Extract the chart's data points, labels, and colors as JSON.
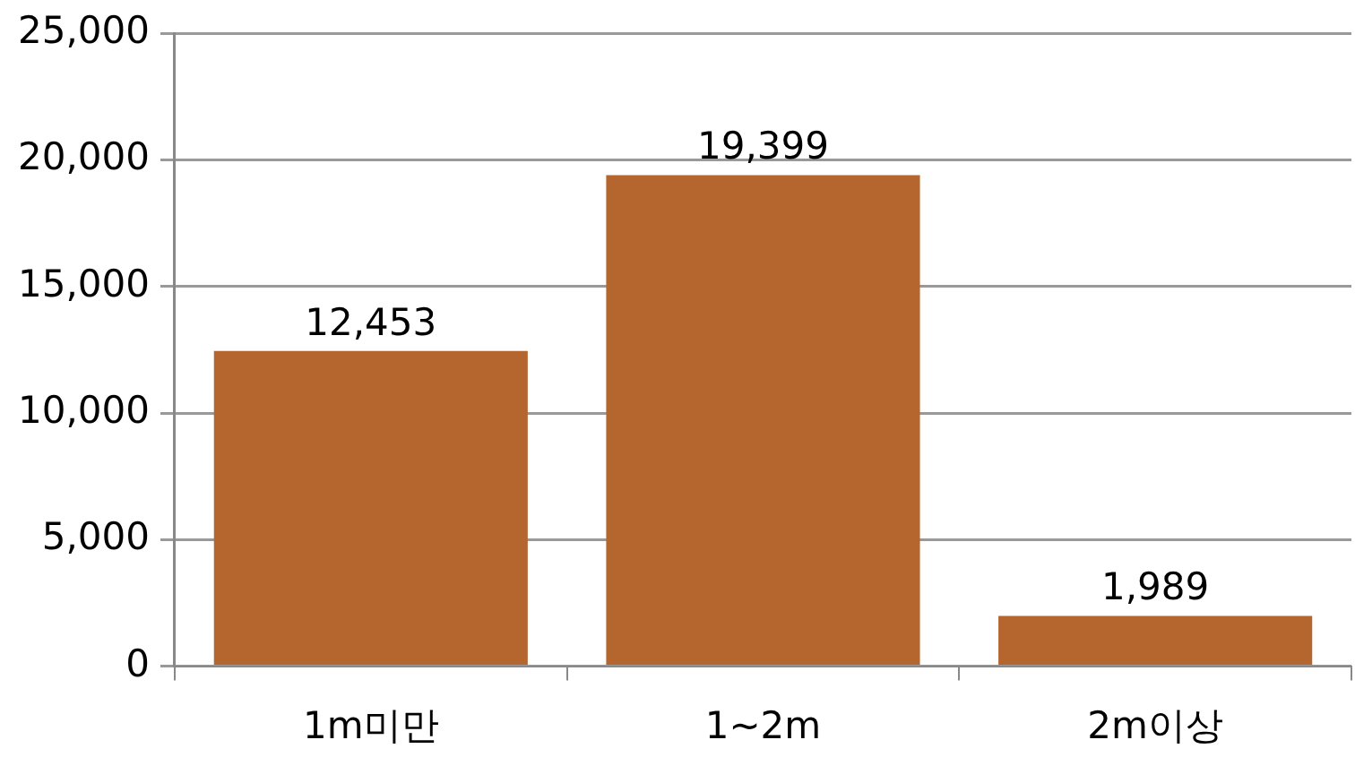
{
  "chart_data": {
    "type": "bar",
    "categories": [
      "1m미만",
      "1~2m",
      "2m이상"
    ],
    "values": [
      12453,
      19399,
      1989
    ],
    "value_labels": [
      "12,453",
      "19,399",
      "1,989"
    ],
    "color": "#b5662f",
    "ylim": [
      0,
      25000
    ],
    "yticks": [
      {
        "value": 0,
        "label": "0"
      },
      {
        "value": 5000,
        "label": "5,000"
      },
      {
        "value": 10000,
        "label": "10,000"
      },
      {
        "value": 15000,
        "label": "15,000"
      },
      {
        "value": 20000,
        "label": "20,000"
      },
      {
        "value": 25000,
        "label": "25,000"
      }
    ],
    "grid": "y"
  }
}
